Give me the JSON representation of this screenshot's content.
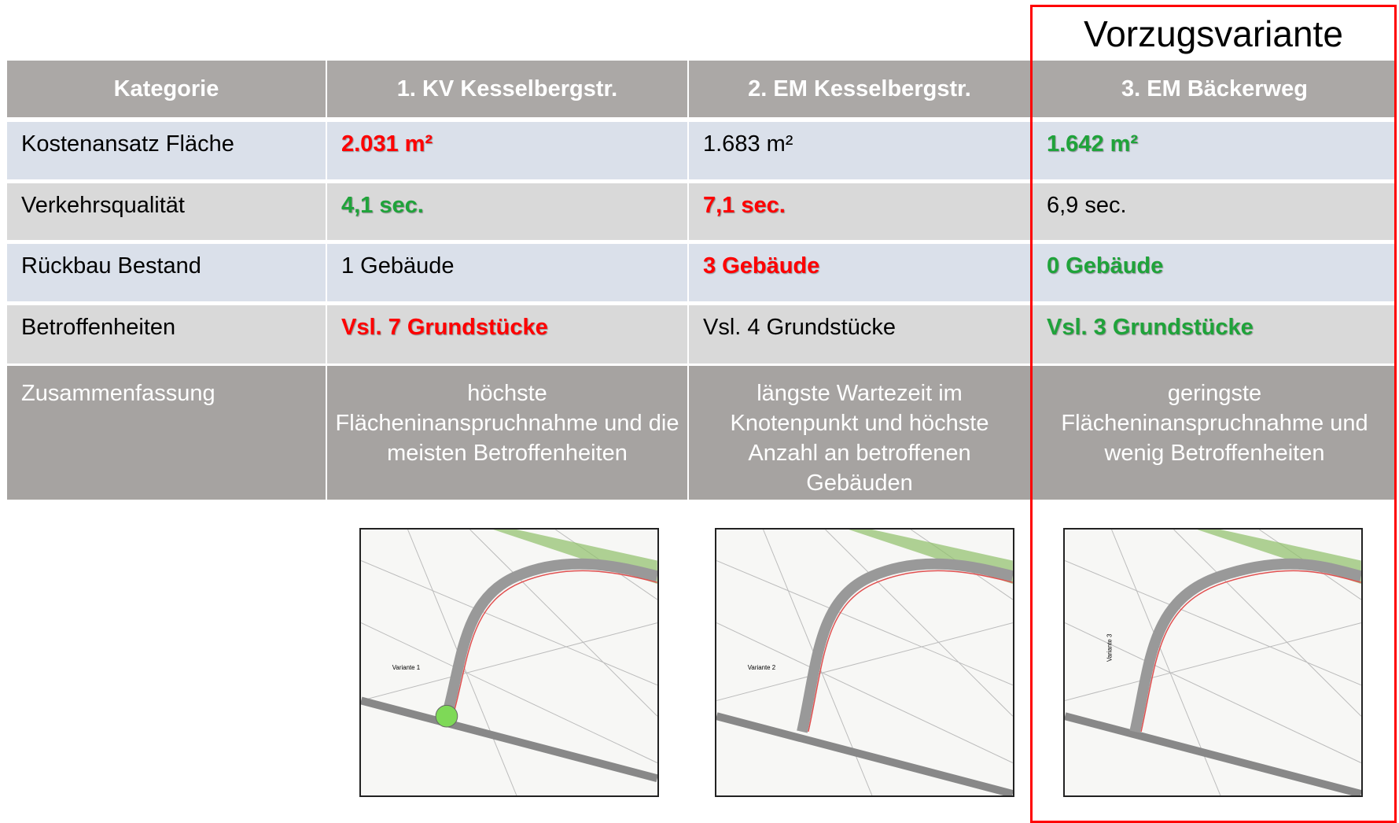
{
  "title": "Vorzugsvariante",
  "table": {
    "header": [
      "Kategorie",
      "1. KV Kesselbergstr.",
      "2. EM Kesselbergstr.",
      "3. EM Bäckerweg"
    ],
    "rows": [
      {
        "label": "Kostenansatz Fläche",
        "cells": [
          {
            "text": "2.031 m²",
            "color": "#ff0000"
          },
          {
            "text": "1.683 m²"
          },
          {
            "text": "1.642 m²",
            "color": "#1fa33a"
          }
        ]
      },
      {
        "label": "Verkehrsqualität",
        "cells": [
          {
            "text": "4,1 sec.",
            "color": "#1fa33a"
          },
          {
            "text": "7,1 sec.",
            "color": "#ff0000"
          },
          {
            "text": "6,9 sec."
          }
        ]
      },
      {
        "label": "Rückbau Bestand",
        "cells": [
          {
            "text": "1 Gebäude"
          },
          {
            "text": "3 Gebäude",
            "color": "#ff0000"
          },
          {
            "text": "0 Gebäude",
            "color": "#1fa33a"
          }
        ]
      },
      {
        "label": "Betroffenheiten",
        "cells": [
          {
            "text": "Vsl. 7 Grundstücke",
            "color": "#ff0000"
          },
          {
            "text": "Vsl. 4 Grundstücke"
          },
          {
            "text": "Vsl. 3 Grundstücke",
            "color": "#1fa33a"
          }
        ]
      }
    ],
    "summary": {
      "label": "Zusammenfassung",
      "cells": [
        "höchste Flächeninanspruchnahme und die meisten Betroffenheiten",
        "längste Wartezeit im Knotenpunkt und höchste Anzahl an betroffenen Gebäuden",
        "geringste Flächeninanspruchnahme und wenig Betroffenheiten"
      ]
    }
  },
  "images": [
    {
      "label": "Variante 1"
    },
    {
      "label": "Variante 2"
    },
    {
      "label": "Variante 3"
    }
  ]
}
